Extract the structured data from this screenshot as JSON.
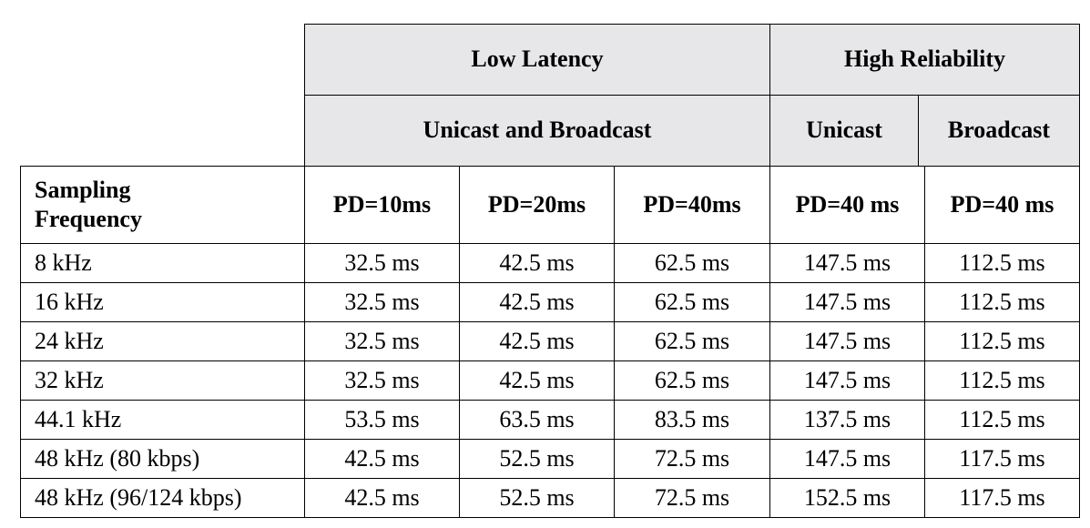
{
  "table": {
    "header_groups": [
      "Low Latency",
      "High Reliability"
    ],
    "header_subgroups": [
      "Unicast and Broadcast",
      "Unicast",
      "Broadcast"
    ],
    "columns": [
      "Sampling Frequency",
      "PD=10ms",
      "PD=20ms",
      "PD=40ms",
      "PD=40 ms",
      "PD=40 ms"
    ],
    "rows": [
      [
        "8 kHz",
        "32.5 ms",
        "42.5 ms",
        "62.5 ms",
        "147.5 ms",
        "112.5 ms"
      ],
      [
        "16 kHz",
        "32.5 ms",
        "42.5 ms",
        "62.5 ms",
        "147.5 ms",
        "112.5 ms"
      ],
      [
        "24 kHz",
        "32.5 ms",
        "42.5 ms",
        "62.5 ms",
        "147.5 ms",
        "112.5 ms"
      ],
      [
        "32 kHz",
        "32.5 ms",
        "42.5 ms",
        "62.5 ms",
        "147.5 ms",
        "112.5 ms"
      ],
      [
        "44.1 kHz",
        "53.5 ms",
        "63.5 ms",
        "83.5 ms",
        "137.5 ms",
        "112.5 ms"
      ],
      [
        "48 kHz (80 kbps)",
        "42.5 ms",
        "52.5 ms",
        "72.5 ms",
        "147.5 ms",
        "117.5 ms"
      ],
      [
        "48 kHz (96/124 kbps)",
        "42.5 ms",
        "52.5 ms",
        "72.5 ms",
        "152.5 ms",
        "117.5 ms"
      ]
    ]
  }
}
